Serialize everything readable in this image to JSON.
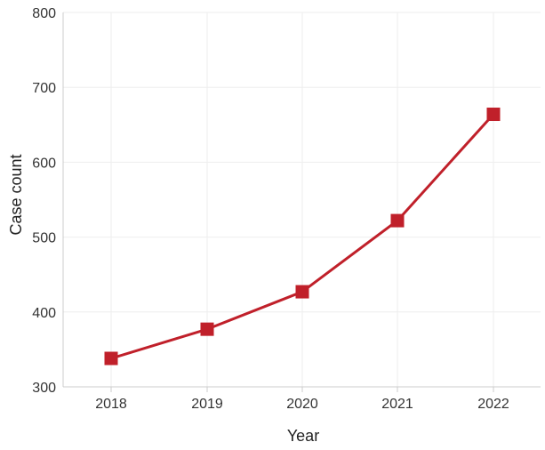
{
  "chart_data": {
    "type": "line",
    "title": "",
    "xlabel": "Year",
    "ylabel": "Case count",
    "categories": [
      "2018",
      "2019",
      "2020",
      "2021",
      "2022"
    ],
    "series": [
      {
        "values": [
          338,
          377,
          427,
          522,
          664
        ]
      }
    ],
    "ylim": [
      300,
      800
    ],
    "yticks": [
      "300",
      "400",
      "500",
      "600",
      "700",
      "800"
    ],
    "grid": true,
    "legend": "none",
    "marker": "square",
    "colors": {
      "series": "#c0202a",
      "grid": "#eeeeee",
      "axis": "#cccccc"
    }
  }
}
